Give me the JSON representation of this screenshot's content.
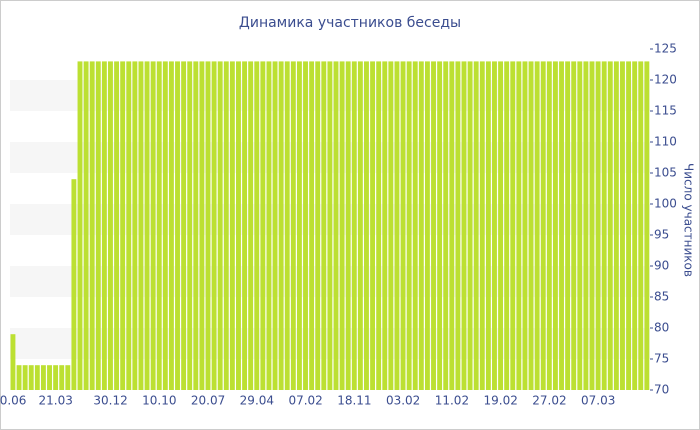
{
  "chart_data": {
    "type": "bar",
    "title": "Динамика участников беседы",
    "y_axis_label": "Число участников",
    "categories": [
      "0.06",
      null,
      null,
      null,
      null,
      null,
      null,
      "21.03",
      null,
      null,
      null,
      null,
      null,
      null,
      null,
      null,
      "30.12",
      null,
      null,
      null,
      null,
      null,
      null,
      null,
      "10.10",
      null,
      null,
      null,
      null,
      null,
      null,
      null,
      "20.07",
      null,
      null,
      null,
      null,
      null,
      null,
      null,
      "29.04",
      null,
      null,
      null,
      null,
      null,
      null,
      null,
      "07.02",
      null,
      null,
      null,
      null,
      null,
      null,
      null,
      "18.11",
      null,
      null,
      null,
      null,
      null,
      null,
      null,
      "03.02",
      null,
      null,
      null,
      null,
      null,
      null,
      null,
      "11.02",
      null,
      null,
      null,
      null,
      null,
      null,
      null,
      "19.02",
      null,
      null,
      null,
      null,
      null,
      null,
      null,
      "27.02",
      null,
      null,
      null,
      null,
      null,
      null,
      null,
      "07.03",
      null,
      null,
      null,
      null,
      null,
      null,
      null,
      null
    ],
    "values": [
      79,
      74,
      74,
      74,
      74,
      74,
      74,
      74,
      74,
      74,
      104,
      123,
      123,
      123,
      123,
      123,
      123,
      123,
      123,
      123,
      123,
      123,
      123,
      123,
      123,
      123,
      123,
      123,
      123,
      123,
      123,
      123,
      123,
      123,
      123,
      123,
      123,
      123,
      123,
      123,
      123,
      123,
      123,
      123,
      123,
      123,
      123,
      123,
      123,
      123,
      123,
      123,
      123,
      123,
      123,
      123,
      123,
      123,
      123,
      123,
      123,
      123,
      123,
      123,
      123,
      123,
      123,
      123,
      123,
      123,
      123,
      123,
      123,
      123,
      123,
      123,
      123,
      123,
      123,
      123,
      123,
      123,
      123,
      123,
      123,
      123,
      123,
      123,
      123,
      123,
      123,
      123,
      123,
      123,
      123,
      123,
      123,
      123,
      123,
      123,
      123,
      123,
      123,
      123,
      123
    ],
    "color": "#bce032",
    "ylim": [
      70,
      125
    ],
    "yticks": [
      70,
      75,
      80,
      85,
      90,
      95,
      100,
      105,
      110,
      115,
      120,
      125
    ],
    "grid": true
  }
}
